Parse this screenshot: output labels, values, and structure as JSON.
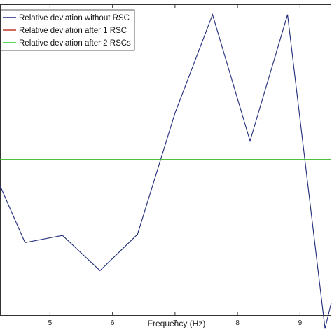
{
  "chart_data": {
    "type": "line",
    "title": "",
    "xlabel": "Frequency (Hz)",
    "ylabel": "",
    "xlim": [
      4.2,
      9.5
    ],
    "ylim": [
      -1.5,
      1.5
    ],
    "x_ticks": [
      5,
      6,
      7,
      8,
      9
    ],
    "x_tick_labels": [
      "5",
      "6",
      "7",
      "8",
      "9"
    ],
    "grid": false,
    "legend_position": "top-left",
    "series": [
      {
        "name": "Relative deviation without RSC",
        "color": "#1f2a7a",
        "x": [
          4.2,
          4.6,
          5.2,
          5.8,
          6.4,
          7.0,
          7.6,
          8.2,
          8.8,
          9.4,
          9.5
        ],
        "y": [
          -0.25,
          -0.8,
          -0.73,
          -1.07,
          -0.72,
          0.45,
          1.4,
          0.18,
          1.4,
          -1.63,
          -1.38
        ]
      },
      {
        "name": "Relative deviation after 1 RSC",
        "color": "#c0392b",
        "x": [
          4.2,
          9.5
        ],
        "y": [
          0.0,
          0.0
        ]
      },
      {
        "name": "Relative deviation after 2 RSCs",
        "color": "#22cc22",
        "x": [
          4.2,
          9.5
        ],
        "y": [
          0.0,
          0.0
        ]
      }
    ]
  }
}
